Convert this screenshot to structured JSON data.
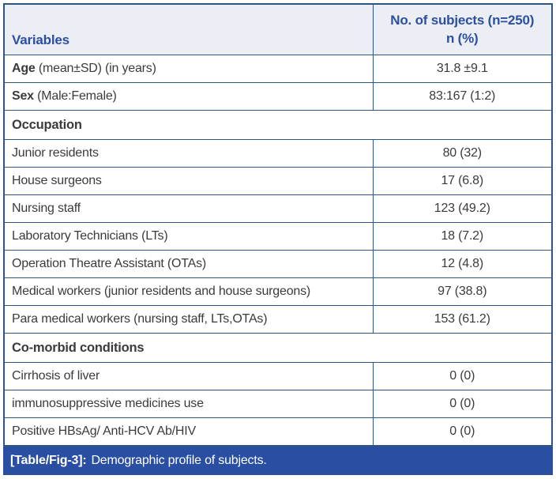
{
  "colors": {
    "header_background": "#eceef6",
    "header_text": "#2c4f9e",
    "border": "#2f567f",
    "body_text": "#3b3b3b",
    "caption_background": "#2a4fa2",
    "caption_text": "#ffffff"
  },
  "table": {
    "header": {
      "variables_label": "Variables",
      "subjects_line1": "No. of subjects (n=250)",
      "subjects_line2": "n (%)"
    },
    "rows": [
      {
        "bold": "Age",
        "rest": " (mean±SD) (in years)",
        "value": "31.8 ±9.1"
      },
      {
        "bold": "Sex",
        "rest": " (Male:Female)",
        "value": "83:167 (1:2)"
      },
      {
        "label": "Occupation"
      },
      {
        "label": "Junior residents",
        "value": "80 (32)"
      },
      {
        "label": "House surgeons",
        "value": "17 (6.8)"
      },
      {
        "label": "Nursing staff",
        "value": "123 (49.2)"
      },
      {
        "label": "Laboratory Technicians (LTs)",
        "value": "18 (7.2)"
      },
      {
        "label": "Operation Theatre Assistant (OTAs)",
        "value": "12 (4.8)"
      },
      {
        "label": "Medical workers (junior residents and house surgeons)",
        "value": "97 (38.8)"
      },
      {
        "label": "Para medical workers (nursing staff, LTs,OTAs)",
        "value": "153 (61.2)"
      },
      {
        "label": "Co-morbid conditions"
      },
      {
        "label": "Cirrhosis of liver",
        "value": "0 (0)"
      },
      {
        "label": "immunosuppressive medicines use",
        "value": "0 (0)"
      },
      {
        "label": "Positive HBsAg/ Anti-HCV Ab/HIV",
        "value": "0 (0)"
      }
    ],
    "caption": {
      "tag": "[Table/Fig-3]:",
      "text": "Demographic profile of subjects."
    }
  }
}
